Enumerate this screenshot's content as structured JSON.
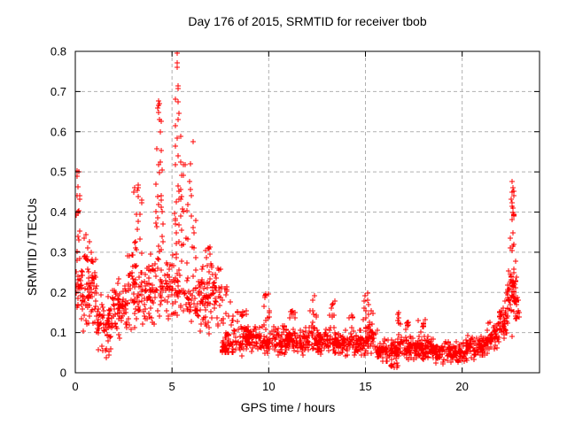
{
  "figure": {
    "title": "Day 176 of 2015, SRMTID for receiver tbob",
    "xlabel": "GPS time / hours",
    "ylabel": "SRMTID / TECUs"
  },
  "chart_data": {
    "type": "scatter",
    "title": "Day 176 of 2015, SRMTID for receiver tbob",
    "xlabel": "GPS time / hours",
    "ylabel": "SRMTID / TECUs",
    "xlim": [
      0,
      24
    ],
    "ylim": [
      0,
      0.8
    ],
    "xticks": {
      "values": [
        0,
        5,
        10,
        15,
        20
      ],
      "labels": [
        "0",
        "5",
        "10",
        "15",
        "20"
      ]
    },
    "yticks": {
      "values": [
        0,
        0.1,
        0.2,
        0.3,
        0.4,
        0.5,
        0.6,
        0.7,
        0.8
      ],
      "labels": [
        "0",
        "0.1",
        "0.2",
        "0.3",
        "0.4",
        "0.5",
        "0.6",
        "0.7",
        "0.8"
      ]
    },
    "grid": true,
    "grid_style": "dashed",
    "grid_color": "#b0b0b0",
    "frame_color": "#000000",
    "legend": "none",
    "marker": {
      "shape": "plus",
      "color": "#ff0000",
      "size": 7
    },
    "series_name": "SRMTID",
    "seed": 20150176,
    "clusters": [
      [
        0.0,
        0.35,
        28,
        0.13,
        0.3,
        "t"
      ],
      [
        0.02,
        0.28,
        12,
        0.3,
        0.51,
        "u"
      ],
      [
        0.3,
        1.1,
        70,
        0.1,
        0.3,
        "t"
      ],
      [
        0.45,
        0.75,
        8,
        0.28,
        0.36,
        "u"
      ],
      [
        1.1,
        1.9,
        60,
        0.05,
        0.2,
        "t"
      ],
      [
        1.4,
        1.8,
        6,
        0.035,
        0.06,
        "u"
      ],
      [
        1.9,
        2.7,
        65,
        0.08,
        0.24,
        "t"
      ],
      [
        2.7,
        3.1,
        35,
        0.1,
        0.3,
        "t"
      ],
      [
        3.0,
        3.45,
        18,
        0.28,
        0.47,
        "u"
      ],
      [
        3.1,
        3.6,
        30,
        0.1,
        0.28,
        "t"
      ],
      [
        3.6,
        4.1,
        40,
        0.1,
        0.3,
        "t"
      ],
      [
        4.15,
        4.55,
        20,
        0.3,
        0.52,
        "u"
      ],
      [
        4.2,
        4.5,
        8,
        0.52,
        0.68,
        "u"
      ],
      [
        4.1,
        4.7,
        35,
        0.12,
        0.3,
        "t"
      ],
      [
        4.7,
        5.1,
        30,
        0.12,
        0.3,
        "t"
      ],
      [
        5.1,
        5.55,
        25,
        0.28,
        0.55,
        "u"
      ],
      [
        5.15,
        5.45,
        7,
        0.55,
        0.78,
        "u"
      ],
      [
        5.1,
        5.7,
        30,
        0.12,
        0.28,
        "t"
      ],
      [
        5.55,
        6.25,
        20,
        0.27,
        0.52,
        "u"
      ],
      [
        5.7,
        6.5,
        45,
        0.1,
        0.27,
        "t"
      ],
      [
        6.5,
        7.6,
        80,
        0.09,
        0.28,
        "t"
      ],
      [
        6.6,
        7.1,
        10,
        0.26,
        0.32,
        "u"
      ],
      [
        7.6,
        8.6,
        80,
        0.05,
        0.17,
        "b"
      ],
      [
        7.7,
        8.05,
        6,
        0.17,
        0.22,
        "u"
      ],
      [
        8.6,
        9.8,
        95,
        0.04,
        0.13,
        "t"
      ],
      [
        8.6,
        8.85,
        6,
        0.12,
        0.155,
        "u"
      ],
      [
        9.75,
        10.05,
        12,
        0.12,
        0.2,
        "u"
      ],
      [
        9.8,
        11.1,
        100,
        0.04,
        0.12,
        "t"
      ],
      [
        11.05,
        11.35,
        8,
        0.11,
        0.165,
        "u"
      ],
      [
        11.1,
        12.15,
        85,
        0.04,
        0.115,
        "t"
      ],
      [
        12.15,
        12.55,
        14,
        0.11,
        0.205,
        "u"
      ],
      [
        12.2,
        13.2,
        80,
        0.045,
        0.115,
        "t"
      ],
      [
        13.15,
        13.45,
        10,
        0.11,
        0.185,
        "u"
      ],
      [
        13.3,
        14.9,
        120,
        0.035,
        0.11,
        "t"
      ],
      [
        14.1,
        14.35,
        6,
        0.1,
        0.145,
        "u"
      ],
      [
        14.9,
        15.45,
        14,
        0.12,
        0.21,
        "u"
      ],
      [
        14.9,
        15.6,
        50,
        0.04,
        0.12,
        "t"
      ],
      [
        15.6,
        16.6,
        85,
        0.025,
        0.09,
        "t"
      ],
      [
        16.3,
        16.7,
        8,
        0.012,
        0.025,
        "u"
      ],
      [
        16.6,
        17.35,
        55,
        0.03,
        0.1,
        "t"
      ],
      [
        16.65,
        16.85,
        6,
        0.1,
        0.15,
        "u"
      ],
      [
        17.05,
        17.3,
        8,
        0.1,
        0.16,
        "u"
      ],
      [
        17.35,
        18.5,
        90,
        0.03,
        0.095,
        "t"
      ],
      [
        17.7,
        18.1,
        8,
        0.095,
        0.135,
        "u"
      ],
      [
        18.5,
        20.3,
        140,
        0.02,
        0.085,
        "t"
      ],
      [
        20.3,
        21.3,
        80,
        0.03,
        0.1,
        "t"
      ],
      [
        21.3,
        21.9,
        50,
        0.05,
        0.135,
        "t"
      ],
      [
        21.9,
        22.35,
        40,
        0.08,
        0.19,
        "t"
      ],
      [
        22.3,
        22.8,
        55,
        0.14,
        0.28,
        "t"
      ],
      [
        22.45,
        22.7,
        6,
        0.3,
        0.36,
        "u"
      ],
      [
        22.55,
        22.7,
        8,
        0.38,
        0.455,
        "u"
      ],
      [
        22.75,
        22.95,
        14,
        0.1,
        0.22,
        "t"
      ]
    ],
    "highlight_points": [
      [
        5.25,
        0.795
      ],
      [
        5.28,
        0.76
      ],
      [
        5.32,
        0.715
      ],
      [
        5.3,
        0.675
      ],
      [
        5.33,
        0.63
      ],
      [
        5.28,
        0.585
      ],
      [
        4.35,
        0.67
      ],
      [
        4.3,
        0.648
      ],
      [
        4.42,
        0.625
      ],
      [
        4.38,
        0.6
      ],
      [
        6.08,
        0.575
      ],
      [
        5.95,
        0.52
      ],
      [
        0.07,
        0.503
      ],
      [
        0.1,
        0.49
      ],
      [
        0.13,
        0.463
      ],
      [
        0.09,
        0.44
      ],
      [
        22.6,
        0.475
      ],
      [
        22.62,
        0.46
      ],
      [
        22.58,
        0.45
      ],
      [
        22.65,
        0.44
      ],
      [
        22.6,
        0.415
      ],
      [
        22.63,
        0.4
      ],
      [
        22.6,
        0.09
      ]
    ]
  }
}
